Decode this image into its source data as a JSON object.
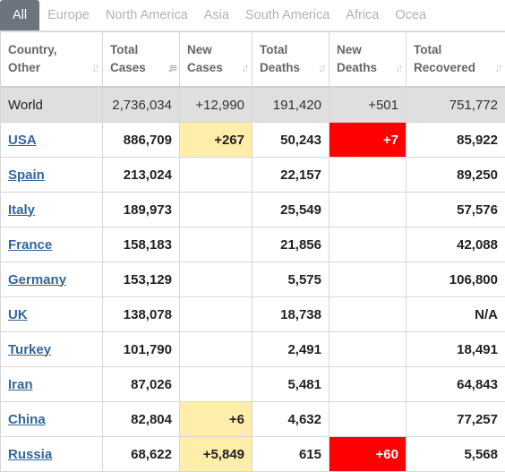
{
  "tabs": [
    {
      "label": "All",
      "active": true
    },
    {
      "label": "Europe"
    },
    {
      "label": "North America"
    },
    {
      "label": "Asia"
    },
    {
      "label": "South America"
    },
    {
      "label": "Africa"
    },
    {
      "label": "Ocea"
    }
  ],
  "columns": [
    {
      "l1": "Country,",
      "l2": "Other"
    },
    {
      "l1": "Total",
      "l2": "Cases"
    },
    {
      "l1": "New",
      "l2": "Cases"
    },
    {
      "l1": "Total",
      "l2": "Deaths"
    },
    {
      "l1": "New",
      "l2": "Deaths"
    },
    {
      "l1": "Total",
      "l2": "Recovered"
    }
  ],
  "world": {
    "name": "World",
    "total_cases": "2,736,034",
    "new_cases": "+12,990",
    "total_deaths": "191,420",
    "new_deaths": "+501",
    "total_recovered": "751,772"
  },
  "rows": [
    {
      "name": "USA",
      "total_cases": "886,709",
      "new_cases": "+267",
      "total_deaths": "50,243",
      "new_deaths": "+7",
      "total_recovered": "85,922"
    },
    {
      "name": "Spain",
      "total_cases": "213,024",
      "new_cases": "",
      "total_deaths": "22,157",
      "new_deaths": "",
      "total_recovered": "89,250"
    },
    {
      "name": "Italy",
      "total_cases": "189,973",
      "new_cases": "",
      "total_deaths": "25,549",
      "new_deaths": "",
      "total_recovered": "57,576"
    },
    {
      "name": "France",
      "total_cases": "158,183",
      "new_cases": "",
      "total_deaths": "21,856",
      "new_deaths": "",
      "total_recovered": "42,088"
    },
    {
      "name": "Germany",
      "total_cases": "153,129",
      "new_cases": "",
      "total_deaths": "5,575",
      "new_deaths": "",
      "total_recovered": "106,800"
    },
    {
      "name": "UK",
      "total_cases": "138,078",
      "new_cases": "",
      "total_deaths": "18,738",
      "new_deaths": "",
      "total_recovered": "N/A"
    },
    {
      "name": "Turkey",
      "total_cases": "101,790",
      "new_cases": "",
      "total_deaths": "2,491",
      "new_deaths": "",
      "total_recovered": "18,491"
    },
    {
      "name": "Iran",
      "total_cases": "87,026",
      "new_cases": "",
      "total_deaths": "5,481",
      "new_deaths": "",
      "total_recovered": "64,843"
    },
    {
      "name": "China",
      "total_cases": "82,804",
      "new_cases": "+6",
      "total_deaths": "4,632",
      "new_deaths": "",
      "total_recovered": "77,257"
    },
    {
      "name": "Russia",
      "total_cases": "68,622",
      "new_cases": "+5,849",
      "total_deaths": "615",
      "new_deaths": "+60",
      "total_recovered": "5,568"
    }
  ],
  "colors": {
    "tab_active": "#6c757d",
    "new_cases_bg": "#ffeeaa",
    "new_deaths_bg": "#ff0000",
    "link": "#336699",
    "world_bg": "#dfdfdf"
  },
  "icons": {
    "sort": "sort-arrows-icon",
    "sort_active": "sort-desc-icon"
  }
}
